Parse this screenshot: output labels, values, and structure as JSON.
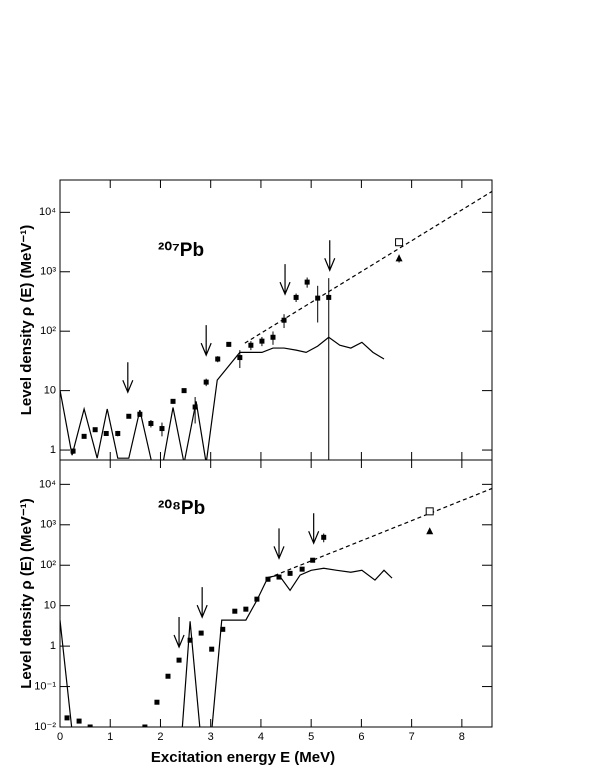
{
  "chart_data": [
    {
      "type": "scatter",
      "ylog": true,
      "label": "²⁰⁷Pb",
      "y_label": "Level density ρ (E) (MeV⁻¹)",
      "xlim": [
        0,
        8.6
      ],
      "xticks": [
        0,
        1,
        2,
        3,
        4,
        5,
        6,
        7,
        8
      ],
      "xtick_labels": false,
      "ylim": [
        0.68,
        35000
      ],
      "yticks": [
        1,
        10,
        {
          "value": 100,
          "label": "10²"
        },
        {
          "value": 1000,
          "label": "10³"
        },
        {
          "value": 10000,
          "label": "10⁴"
        }
      ],
      "series": [
        {
          "style": "solid",
          "color": "#000000",
          "x": [
            0,
            0.24,
            0.48,
            0.74,
            0.94,
            1.15,
            1.37,
            1.59,
            1.83,
            2.05,
            2.25,
            2.47,
            2.71,
            2.91,
            3.13,
            3.58,
            4.02,
            4.24,
            4.46,
            4.7,
            4.9,
            5.13,
            5.35,
            5.57,
            5.79,
            6.01,
            6.23,
            6.45
          ],
          "values": [
            10.2,
            0.82,
            4.9,
            0.73,
            4.9,
            0.73,
            0.73,
            4.7,
            0.6,
            0.6,
            5.2,
            0.6,
            6.6,
            0.6,
            15,
            44,
            44,
            52,
            52,
            48,
            44,
            56,
            79,
            58,
            52,
            65,
            44,
            34
          ]
        },
        {
          "style": "dashed",
          "color": "#000000",
          "x": [
            3.68,
            8.6
          ],
          "values": [
            63,
            22500
          ]
        },
        {
          "style": "filled-square",
          "color": "#000000",
          "x": [
            0.26,
            0.48,
            0.7,
            0.92,
            1.15,
            1.37,
            1.59,
            1.81,
            2.03,
            2.25,
            2.47,
            2.69,
            2.91,
            3.14,
            3.36,
            3.58,
            3.8,
            4.02,
            4.24,
            4.46,
            4.7,
            4.92,
            5.13,
            5.35
          ],
          "values": [
            0.96,
            1.7,
            2.2,
            1.9,
            1.9,
            3.7,
            4.0,
            2.8,
            2.3,
            6.6,
            10,
            5.3,
            13.9,
            34,
            60,
            36,
            58,
            68,
            79,
            153,
            370,
            670,
            360,
            370
          ],
          "errors": [
            0.1,
            0.1,
            0.1,
            0.1,
            0.2,
            0.2,
            0.4,
            0.4,
            0.6,
            0.6,
            0.5,
            2.5,
            2,
            4,
            5,
            12,
            10,
            12,
            20,
            40,
            60,
            130,
            220,
            410
          ]
        },
        {
          "style": "open-square",
          "color": "#000000",
          "x": [
            6.75
          ],
          "values": [
            3140
          ],
          "errors": [
            400
          ]
        },
        {
          "style": "triangle",
          "color": "#000000",
          "x": [
            6.75
          ],
          "values": [
            1680
          ],
          "errors": [
            250
          ]
        }
      ],
      "arrows": {
        "x": [
          1.35,
          2.91,
          4.48,
          5.37
        ],
        "values": [
          9.4,
          39.5,
          420,
          1060
        ]
      }
    },
    {
      "type": "scatter",
      "ylog": true,
      "label": "²⁰⁸Pb",
      "y_label": "Level density ρ (E) (MeV⁻¹)",
      "x_label": "Excitation energy E (MeV)",
      "xlim": [
        0,
        8.6
      ],
      "xticks": [
        0,
        1,
        2,
        3,
        4,
        5,
        6,
        7,
        8
      ],
      "xtick_labels": true,
      "ylim": [
        0.01,
        40000
      ],
      "yticks": [
        {
          "value": 0.01,
          "label": "10⁻²"
        },
        {
          "value": 0.1,
          "label": "10⁻¹"
        },
        1,
        10,
        {
          "value": 100,
          "label": "10²"
        },
        {
          "value": 1000,
          "label": "10³"
        },
        {
          "value": 10000,
          "label": "10⁴"
        }
      ],
      "series": [
        {
          "style": "solid",
          "color": "#000000",
          "x": [
            0,
            0.24,
            2.43,
            2.59,
            2.79,
            3.02,
            3.22,
            3.7,
            3.92,
            4.14,
            4.36,
            4.58,
            4.78,
            5.0,
            5.25,
            5.51,
            5.79,
            6.01,
            6.27,
            6.45,
            6.61
          ],
          "values": [
            4.4,
            0.008,
            0.008,
            4.1,
            0.008,
            0.008,
            4.4,
            4.4,
            13.6,
            50,
            57,
            24,
            57,
            75,
            84,
            75,
            67,
            75,
            43,
            75,
            48
          ]
        },
        {
          "style": "dashed",
          "color": "#000000",
          "x": [
            4.14,
            8.6
          ],
          "values": [
            48,
            7900
          ]
        },
        {
          "style": "filled-square",
          "color": "#000000",
          "x": [
            0.14,
            0.38,
            0.6,
            1.69,
            1.93,
            2.15,
            2.37,
            2.59,
            2.81,
            3.02,
            3.24,
            3.48,
            3.7,
            3.92,
            4.14,
            4.36,
            4.58,
            4.82,
            5.03,
            5.25
          ],
          "values": [
            0.0168,
            0.014,
            0.01,
            0.01,
            0.041,
            0.18,
            0.45,
            1.4,
            2.1,
            0.84,
            2.6,
            7.3,
            8.2,
            14.5,
            45,
            51,
            63,
            80,
            133,
            490
          ],
          "errors": [
            0.001,
            0.001,
            0.001,
            0.001,
            0.003,
            0.01,
            0.03,
            0.1,
            0.15,
            0.06,
            0.2,
            0.5,
            0.6,
            1,
            3,
            4,
            5,
            6,
            12,
            120
          ]
        },
        {
          "style": "open-square",
          "color": "#000000",
          "x": [
            7.36
          ],
          "values": [
            2150
          ],
          "errors": [
            250
          ]
        },
        {
          "style": "triangle",
          "color": "#000000",
          "x": [
            7.36
          ],
          "values": [
            690
          ],
          "errors": [
            60
          ]
        }
      ],
      "arrows": {
        "x": [
          2.37,
          2.83,
          4.36,
          5.05
        ],
        "values": [
          0.95,
          5.2,
          148,
          350
        ]
      }
    }
  ]
}
